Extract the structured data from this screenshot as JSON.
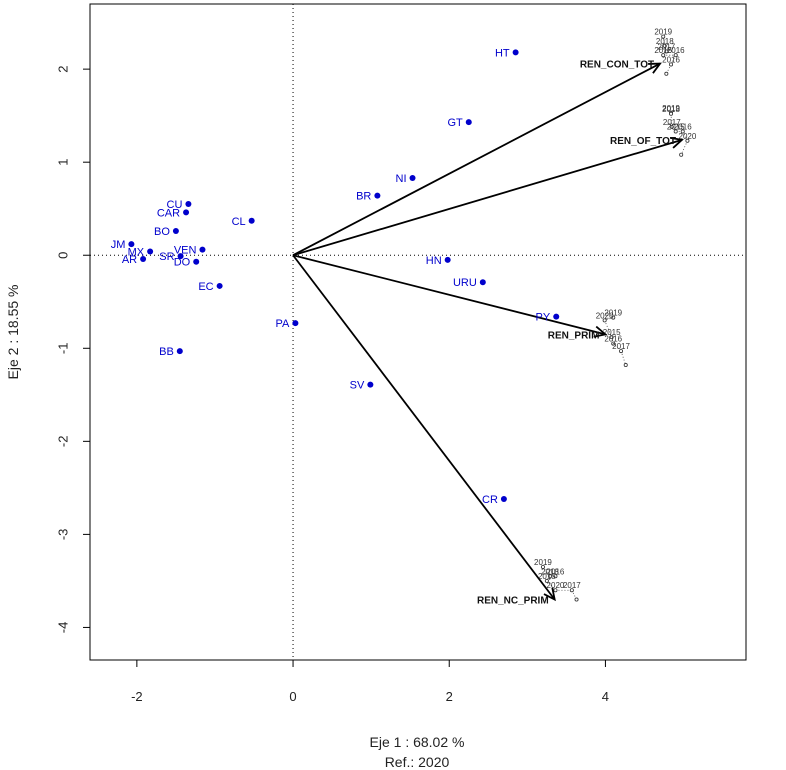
{
  "chart_data": {
    "type": "scatter",
    "xlabel": "Eje 1 :  68.02 %",
    "caption": "Ref.:  2020",
    "ylabel": "Eje 2 :  18.55 %",
    "xlim": [
      -2.6,
      5.8
    ],
    "ylim": [
      -4.35,
      2.7
    ],
    "xticks": [
      "-2",
      "0",
      "2",
      "4"
    ],
    "xtick_values": [
      -2,
      0,
      2,
      4
    ],
    "yticks": [
      "-4",
      "-3",
      "-2",
      "-1",
      "0",
      "1",
      "2"
    ],
    "ytick_values": [
      -4,
      -3,
      -2,
      -1,
      0,
      1,
      2
    ],
    "point_color": "#0000cc",
    "arrow_color": "#000000",
    "points": [
      {
        "label": "HT",
        "x": 2.85,
        "y": 2.18
      },
      {
        "label": "GT",
        "x": 2.25,
        "y": 1.43
      },
      {
        "label": "NI",
        "x": 1.53,
        "y": 0.83
      },
      {
        "label": "BR",
        "x": 1.08,
        "y": 0.64
      },
      {
        "label": "CU",
        "x": -1.34,
        "y": 0.55
      },
      {
        "label": "CAR",
        "x": -1.37,
        "y": 0.46
      },
      {
        "label": "CL",
        "x": -0.53,
        "y": 0.37
      },
      {
        "label": "BO",
        "x": -1.5,
        "y": 0.26
      },
      {
        "label": "JM",
        "x": -2.07,
        "y": 0.12
      },
      {
        "label": "MX",
        "x": -1.83,
        "y": 0.04
      },
      {
        "label": "VEN",
        "x": -1.16,
        "y": 0.06
      },
      {
        "label": "AR",
        "x": -1.92,
        "y": -0.04
      },
      {
        "label": "SR",
        "x": -1.44,
        "y": -0.01
      },
      {
        "label": "DO",
        "x": -1.24,
        "y": -0.07
      },
      {
        "label": "EC",
        "x": -0.94,
        "y": -0.33
      },
      {
        "label": "HN",
        "x": 1.98,
        "y": -0.05
      },
      {
        "label": "URU",
        "x": 2.43,
        "y": -0.29
      },
      {
        "label": "PY",
        "x": 3.37,
        "y": -0.66
      },
      {
        "label": "PA",
        "x": 0.03,
        "y": -0.73
      },
      {
        "label": "BB",
        "x": -1.45,
        "y": -1.03
      },
      {
        "label": "SV",
        "x": 0.99,
        "y": -1.39
      },
      {
        "label": "CR",
        "x": 2.7,
        "y": -2.62
      }
    ],
    "arrows": [
      {
        "label": "REN_CON_TOT",
        "x": 4.7,
        "y": 2.06
      },
      {
        "label": "REN_OF_TOT",
        "x": 4.98,
        "y": 1.24
      },
      {
        "label": "REN_PRIM",
        "x": 4.0,
        "y": -0.85
      },
      {
        "label": "REN_NC_PRIM",
        "x": 3.35,
        "y": -3.7
      }
    ],
    "trajectories": [
      {
        "variable": "REN_CON_TOT",
        "points": [
          {
            "label": "2019",
            "x": 4.74,
            "y": 2.35
          },
          {
            "label": "2018",
            "x": 4.76,
            "y": 2.25
          },
          {
            "label": "2017",
            "x": 4.78,
            "y": 2.19
          },
          {
            "label": "2015",
            "x": 4.74,
            "y": 2.15
          },
          {
            "label": "2016",
            "x": 4.9,
            "y": 2.15
          },
          {
            "label": "2016",
            "x": 4.84,
            "y": 2.05
          },
          {
            "label": "",
            "x": 4.78,
            "y": 1.95
          }
        ]
      },
      {
        "variable": "REN_OF_TOT",
        "points": [
          {
            "label": "2019",
            "x": 4.84,
            "y": 1.53
          },
          {
            "label": "2018",
            "x": 4.84,
            "y": 1.52
          },
          {
            "label": "2017",
            "x": 4.85,
            "y": 1.38
          },
          {
            "label": "2015",
            "x": 4.9,
            "y": 1.33
          },
          {
            "label": "2016",
            "x": 4.99,
            "y": 1.33
          },
          {
            "label": "2020",
            "x": 5.05,
            "y": 1.23
          },
          {
            "label": "",
            "x": 4.97,
            "y": 1.08
          }
        ]
      },
      {
        "variable": "REN_PRIM",
        "points": [
          {
            "label": "2019",
            "x": 4.1,
            "y": -0.67
          },
          {
            "label": "2020",
            "x": 3.99,
            "y": -0.7
          },
          {
            "label": "2015",
            "x": 4.08,
            "y": -0.88
          },
          {
            "label": "2016",
            "x": 4.1,
            "y": -0.95
          },
          {
            "label": "2017",
            "x": 4.2,
            "y": -1.03
          },
          {
            "label": "",
            "x": 4.26,
            "y": -1.18
          }
        ]
      },
      {
        "variable": "REN_NC_PRIM",
        "points": [
          {
            "label": "2019",
            "x": 3.2,
            "y": -3.35
          },
          {
            "label": "2018",
            "x": 3.29,
            "y": -3.45
          },
          {
            "label": "2016",
            "x": 3.36,
            "y": -3.45
          },
          {
            "label": "2015",
            "x": 3.25,
            "y": -3.5
          },
          {
            "label": "2020",
            "x": 3.36,
            "y": -3.6
          },
          {
            "label": "2017",
            "x": 3.57,
            "y": -3.6
          },
          {
            "label": "",
            "x": 3.63,
            "y": -3.7
          }
        ]
      }
    ]
  }
}
